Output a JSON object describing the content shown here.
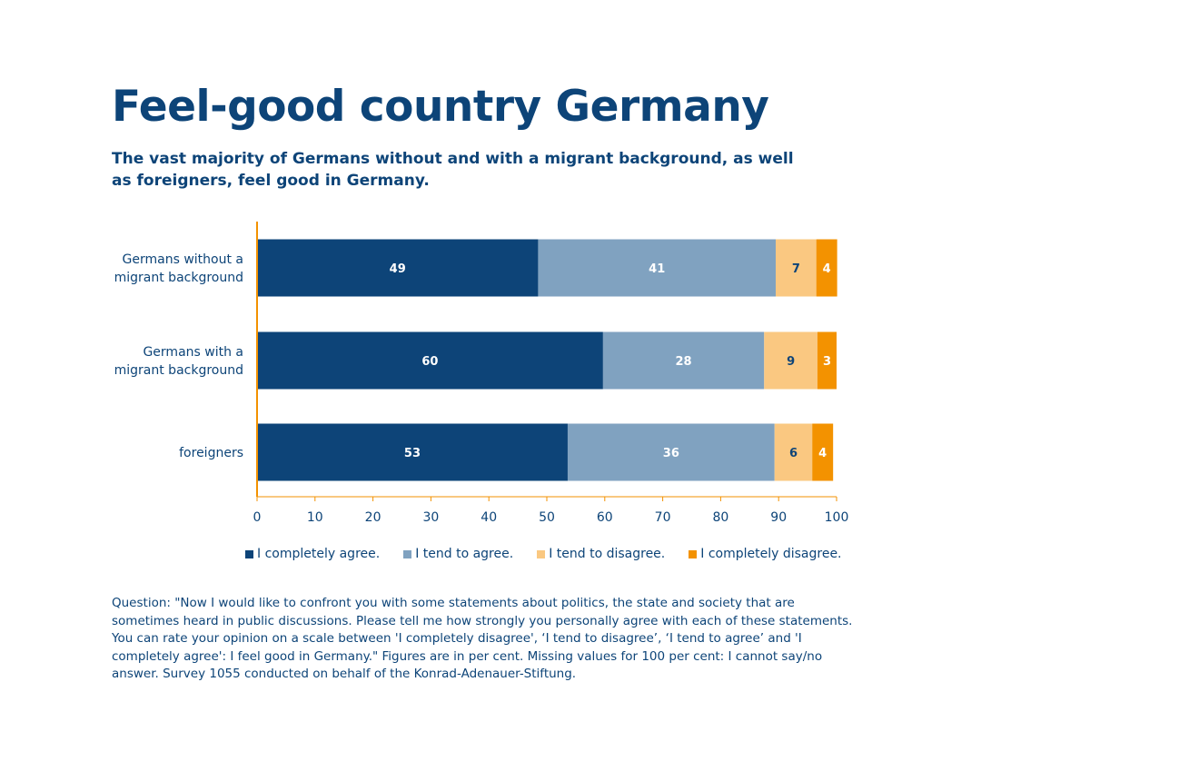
{
  "title": "Feel-good country Germany",
  "subtitle": "The vast majority of Germans without and with a migrant background, as well as foreigners, feel good in Germany.",
  "footnote": "Question: \"Now I would like to confront you with some statements about politics, the state and society that are sometimes heard in public discussions. Please tell me how strongly you personally agree with each of these statements. You can rate your opinion on a scale between 'I completely disagree', ‘I tend to disagree’, ‘I tend to agree’ and 'I completely agree': I feel good in Germany.\" Figures are in per cent. Missing values for 100 per cent: I cannot say/no answer. Survey 1055 conducted on behalf of the Konrad-Adenauer-Stiftung.",
  "chart_data": {
    "type": "bar",
    "orientation": "horizontal",
    "stacked": true,
    "categories": [
      [
        "Germans without a",
        "migrant background"
      ],
      [
        "Germans with a",
        "migrant background"
      ],
      [
        "foreigners"
      ]
    ],
    "series": [
      {
        "name": "I completely agree.",
        "color": "#0d4478",
        "label_color": "#ffffff",
        "values": [
          49,
          60,
          53
        ]
      },
      {
        "name": "I tend to agree.",
        "color": "#80a2c0",
        "label_color": "#ffffff",
        "values": [
          41,
          28,
          36
        ]
      },
      {
        "name": "I tend to disagree.",
        "color": "#fac881",
        "label_color": "#0d4478",
        "values": [
          7,
          9,
          6
        ]
      },
      {
        "name": "I completely disagree.",
        "color": "#f39200",
        "label_color": "#ffffff",
        "values": [
          4,
          3,
          4
        ]
      }
    ],
    "segment_extents": [
      [
        [
          0,
          48.5
        ],
        [
          48.5,
          89.5
        ],
        [
          89.5,
          96.5
        ],
        [
          96.5,
          100.1
        ]
      ],
      [
        [
          0,
          59.7
        ],
        [
          59.7,
          87.5
        ],
        [
          87.5,
          96.7
        ],
        [
          96.7,
          100.0
        ]
      ],
      [
        [
          0,
          53.6
        ],
        [
          53.6,
          89.3
        ],
        [
          89.3,
          95.8
        ],
        [
          95.8,
          99.4
        ]
      ]
    ],
    "xlim": [
      0,
      100
    ],
    "xticks": [
      0,
      10,
      20,
      30,
      40,
      50,
      60,
      70,
      80,
      90,
      100
    ],
    "axis_color": "#f39200",
    "xlabel": "",
    "ylabel": "",
    "legend_position": "bottom"
  }
}
